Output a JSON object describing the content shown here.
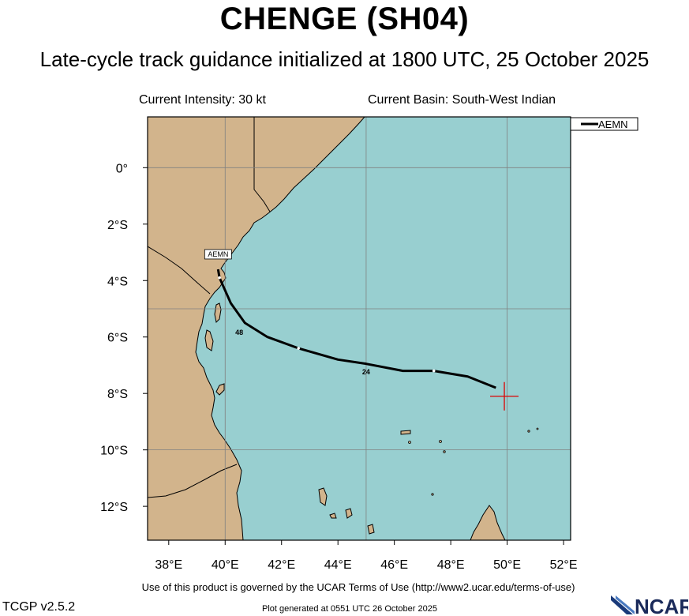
{
  "header": {
    "title": "CHENGE (SH04)",
    "subtitle": "Late-cycle track guidance initialized at 1800 UTC, 25 October 2025"
  },
  "info": {
    "intensity": "Current Intensity: 30 kt",
    "basin": "Current Basin: South-West Indian"
  },
  "legend": {
    "label": "AEMN"
  },
  "map": {
    "lon_range": [
      37.25,
      52.25
    ],
    "lat_range": [
      -13.2,
      1.8
    ],
    "xticks": [
      "38°E",
      "40°E",
      "42°E",
      "44°E",
      "46°E",
      "48°E",
      "50°E",
      "52°E"
    ],
    "yticks": [
      "0°",
      "2°S",
      "4°S",
      "6°S",
      "8°S",
      "10°S",
      "12°S"
    ],
    "colors": {
      "ocean": "#98cfd0",
      "land": "#d2b48c",
      "track": "#000000",
      "cyclone": "#dd0000",
      "grid": "#808080"
    }
  },
  "track": {
    "model": "AEMN",
    "points": [
      {
        "lon": 49.6,
        "lat": -7.8
      },
      {
        "lon": 48.6,
        "lat": -7.4
      },
      {
        "lon": 47.4,
        "lat": -7.2
      },
      {
        "lon": 46.3,
        "lat": -7.2
      },
      {
        "lon": 45.0,
        "lat": -6.95
      },
      {
        "lon": 44.0,
        "lat": -6.8
      },
      {
        "lon": 42.6,
        "lat": -6.4
      },
      {
        "lon": 41.5,
        "lat": -6.0
      },
      {
        "lon": 40.7,
        "lat": -5.5
      },
      {
        "lon": 40.2,
        "lat": -4.8
      },
      {
        "lon": 39.8,
        "lat": -3.9
      },
      {
        "lon": 39.75,
        "lat": -3.6
      }
    ],
    "labels": [
      {
        "text": "24",
        "lon": 45.0,
        "lat": -7.05
      },
      {
        "text": "48",
        "lon": 40.5,
        "lat": -5.65
      }
    ]
  },
  "current_position": {
    "lon": 49.9,
    "lat": -8.1
  },
  "footer": {
    "terms": "Use of this product is governed by the UCAR Terms of Use (http://www2.ucar.edu/terms-of-use)",
    "version": "TCGP v2.5.2",
    "generated": "Plot generated at 0551 UTC   26 October 2025",
    "logo": "NCAR"
  }
}
